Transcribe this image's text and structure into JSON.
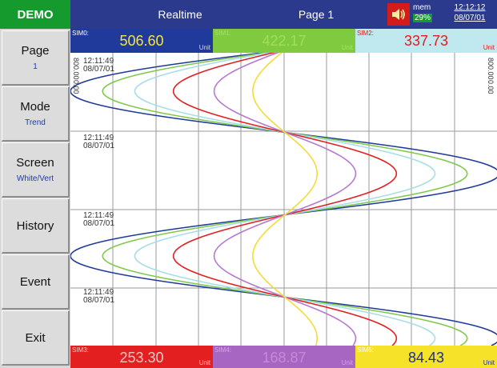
{
  "topbar": {
    "brand": "DEMO",
    "mode": "Realtime",
    "page": "Page 1",
    "mem_label": "mem",
    "mem_pct": "29%",
    "time": "12:12:12",
    "date": "08/07/01"
  },
  "sidebar": {
    "items": [
      {
        "label": "Page",
        "sub": "1"
      },
      {
        "label": "Mode",
        "sub": "Trend"
      },
      {
        "label": "Screen",
        "sub": "White/Vert"
      },
      {
        "label": "History",
        "sub": ""
      },
      {
        "label": "Event",
        "sub": ""
      },
      {
        "label": "Exit",
        "sub": ""
      }
    ]
  },
  "channels_top": [
    {
      "tag": "SIM0:",
      "value": "506.60",
      "unit": "Unit",
      "bg": "#1f3a9a",
      "fg": "#f6e53c",
      "tagc": "#ffffff",
      "unitc": "#f6e53c"
    },
    {
      "tag": "SIM1:",
      "value": "422.17",
      "unit": "Unit",
      "bg": "#7fca3e",
      "fg": "#9ee05c",
      "tagc": "#a9e070",
      "unitc": "#a9e070"
    },
    {
      "tag": "SIM2:",
      "value": "337.73",
      "unit": "Unit",
      "bg": "#bfe8ef",
      "fg": "#e21d1d",
      "tagc": "#e21d1d",
      "unitc": "#e21d1d"
    }
  ],
  "channels_bottom": [
    {
      "tag": "SIM3:",
      "value": "253.30",
      "unit": "Unit",
      "bg": "#e31f1f",
      "fg": "#f4c7c7",
      "tagc": "#f4c7c7",
      "unitc": "#f4c7c7"
    },
    {
      "tag": "SIM4:",
      "value": "168.87",
      "unit": "Unit",
      "bg": "#a866c3",
      "fg": "#c58ad9",
      "tagc": "#d6a5e6",
      "unitc": "#d6a5e6"
    },
    {
      "tag": "SIM5:",
      "value": "84.43",
      "unit": "Unit",
      "bg": "#f7e22a",
      "fg": "#1d2f8c",
      "tagc": "#ffffff",
      "unitc": "#1d2f8c"
    }
  ],
  "chart": {
    "timestamps": [
      {
        "time": "12:11:49",
        "date": "08/07/01"
      },
      {
        "time": "12:11:49",
        "date": "08/07/01"
      },
      {
        "time": "12:11:49",
        "date": "08/07/01"
      },
      {
        "time": "12:11:49",
        "date": "08/07/01"
      }
    ],
    "scale_left_top": "800.00",
    "scale_left_bottom": "0.00",
    "scale_right_top": "800.00",
    "scale_right_bottom": "0.00"
  },
  "chart_data": {
    "type": "line",
    "series": [
      {
        "name": "SIM0",
        "color": "#1f3a9a",
        "amplitude": 1.0
      },
      {
        "name": "SIM1",
        "color": "#7fc94a",
        "amplitude": 0.85
      },
      {
        "name": "SIM2",
        "color": "#a7dde8",
        "amplitude": 0.7
      },
      {
        "name": "SIM3",
        "color": "#e31f1f",
        "amplitude": 0.52
      },
      {
        "name": "SIM4",
        "color": "#b57ad0",
        "amplitude": 0.33
      },
      {
        "name": "SIM5",
        "color": "#f2dc3a",
        "amplitude": 0.15
      }
    ]
  }
}
